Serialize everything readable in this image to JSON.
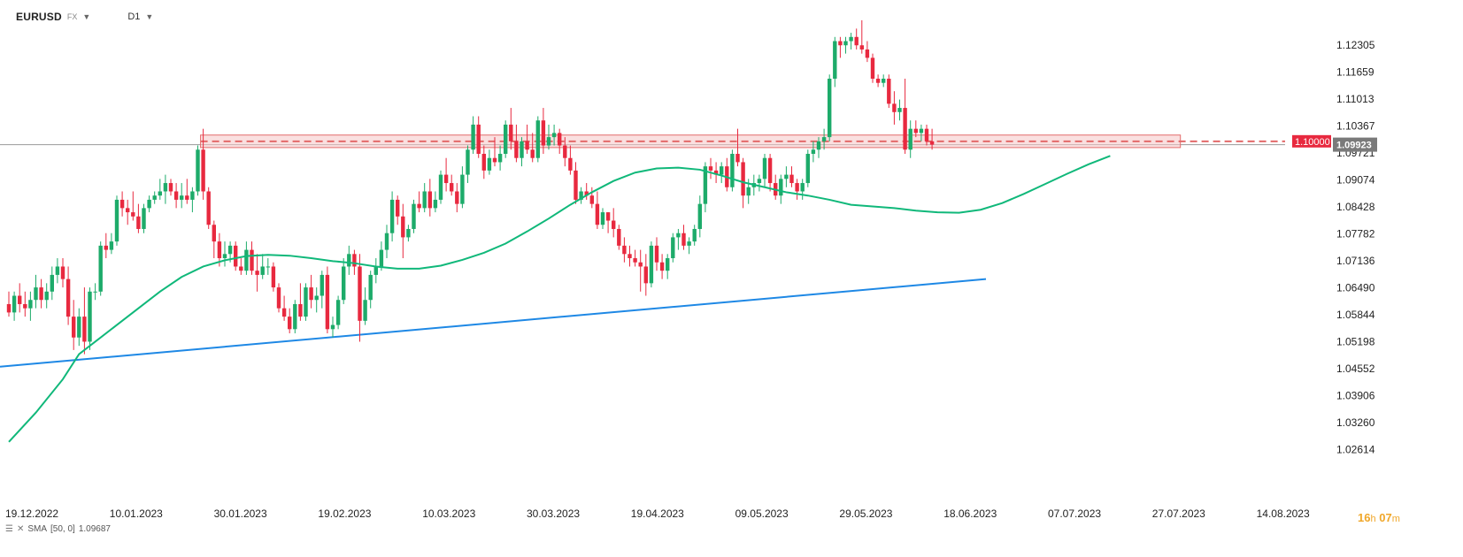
{
  "header": {
    "symbol": "EURUSD",
    "market": "FX",
    "timeframe": "D1"
  },
  "indicator": {
    "label": "SMA",
    "params": "[50, 0]",
    "value": "1.09687"
  },
  "countdown": {
    "hours": "16",
    "hours_unit": "h",
    "minutes": "07",
    "minutes_unit": "m"
  },
  "price_tags": {
    "level": "1.10000",
    "current": "1.09923"
  },
  "colors": {
    "up": "#1dab6a",
    "down": "#e8293f",
    "sma": "#10b87a",
    "trendline": "#1e88e5",
    "zone_fill": "#f6c7c7",
    "zone_stroke": "#e36a6a",
    "level_tag": "#e8293f",
    "current_tag": "#7a7a7a"
  },
  "chart_data": {
    "type": "candlestick",
    "symbol": "EURUSD",
    "ylim": [
      1.02,
      1.13
    ],
    "y_ticks": [
      "1.12305",
      "1.11659",
      "1.11013",
      "1.10367",
      "1.09721",
      "1.09074",
      "1.08428",
      "1.07782",
      "1.07136",
      "1.06490",
      "1.05844",
      "1.05198",
      "1.04552",
      "1.03906",
      "1.03260",
      "1.02614"
    ],
    "x_ticks": [
      "19.12.2022",
      "10.01.2023",
      "30.01.2023",
      "19.02.2023",
      "10.03.2023",
      "30.03.2023",
      "19.04.2023",
      "09.05.2023",
      "29.05.2023",
      "18.06.2023",
      "07.07.2023",
      "27.07.2023",
      "14.08.2023"
    ],
    "candles": [
      [
        1.061,
        1.064,
        1.058,
        1.059
      ],
      [
        1.059,
        1.064,
        1.057,
        1.063
      ],
      [
        1.063,
        1.066,
        1.059,
        1.061
      ],
      [
        1.061,
        1.064,
        1.058,
        1.06
      ],
      [
        1.06,
        1.064,
        1.057,
        1.062
      ],
      [
        1.062,
        1.068,
        1.06,
        1.065
      ],
      [
        1.065,
        1.067,
        1.06,
        1.062
      ],
      [
        1.062,
        1.066,
        1.06,
        1.064
      ],
      [
        1.064,
        1.07,
        1.062,
        1.068
      ],
      [
        1.068,
        1.072,
        1.066,
        1.07
      ],
      [
        1.07,
        1.072,
        1.065,
        1.067
      ],
      [
        1.067,
        1.07,
        1.056,
        1.058
      ],
      [
        1.058,
        1.062,
        1.05,
        1.053
      ],
      [
        1.053,
        1.06,
        1.051,
        1.058
      ],
      [
        1.058,
        1.065,
        1.049,
        1.052
      ],
      [
        1.052,
        1.065,
        1.05,
        1.064
      ],
      [
        1.064,
        1.066,
        1.062,
        1.064
      ],
      [
        1.064,
        1.076,
        1.063,
        1.075
      ],
      [
        1.075,
        1.078,
        1.072,
        1.074
      ],
      [
        1.074,
        1.078,
        1.073,
        1.076
      ],
      [
        1.076,
        1.087,
        1.075,
        1.086
      ],
      [
        1.086,
        1.088,
        1.082,
        1.084
      ],
      [
        1.084,
        1.086,
        1.08,
        1.083
      ],
      [
        1.083,
        1.088,
        1.081,
        1.082
      ],
      [
        1.082,
        1.085,
        1.078,
        1.079
      ],
      [
        1.079,
        1.085,
        1.078,
        1.084
      ],
      [
        1.084,
        1.087,
        1.083,
        1.086
      ],
      [
        1.086,
        1.088,
        1.085,
        1.087
      ],
      [
        1.087,
        1.091,
        1.086,
        1.088
      ],
      [
        1.088,
        1.092,
        1.085,
        1.09
      ],
      [
        1.09,
        1.091,
        1.087,
        1.088
      ],
      [
        1.088,
        1.09,
        1.084,
        1.086
      ],
      [
        1.086,
        1.09,
        1.084,
        1.087
      ],
      [
        1.087,
        1.091,
        1.085,
        1.086
      ],
      [
        1.086,
        1.089,
        1.083,
        1.088
      ],
      [
        1.088,
        1.099,
        1.087,
        1.098
      ],
      [
        1.098,
        1.103,
        1.086,
        1.088
      ],
      [
        1.088,
        1.089,
        1.079,
        1.08
      ],
      [
        1.08,
        1.081,
        1.072,
        1.076
      ],
      [
        1.076,
        1.078,
        1.07,
        1.072
      ],
      [
        1.072,
        1.076,
        1.07,
        1.073
      ],
      [
        1.073,
        1.076,
        1.071,
        1.075
      ],
      [
        1.075,
        1.076,
        1.069,
        1.07
      ],
      [
        1.07,
        1.072,
        1.068,
        1.069
      ],
      [
        1.069,
        1.076,
        1.068,
        1.074
      ],
      [
        1.074,
        1.076,
        1.068,
        1.069
      ],
      [
        1.069,
        1.073,
        1.064,
        1.068
      ],
      [
        1.068,
        1.073,
        1.067,
        1.07
      ],
      [
        1.07,
        1.072,
        1.068,
        1.07
      ],
      [
        1.07,
        1.071,
        1.064,
        1.065
      ],
      [
        1.065,
        1.066,
        1.059,
        1.06
      ],
      [
        1.06,
        1.063,
        1.057,
        1.058
      ],
      [
        1.058,
        1.06,
        1.054,
        1.055
      ],
      [
        1.055,
        1.062,
        1.054,
        1.061
      ],
      [
        1.061,
        1.066,
        1.057,
        1.058
      ],
      [
        1.058,
        1.066,
        1.057,
        1.065
      ],
      [
        1.065,
        1.068,
        1.06,
        1.062
      ],
      [
        1.062,
        1.065,
        1.059,
        1.063
      ],
      [
        1.063,
        1.069,
        1.06,
        1.068
      ],
      [
        1.068,
        1.07,
        1.054,
        1.055
      ],
      [
        1.055,
        1.058,
        1.053,
        1.056
      ],
      [
        1.056,
        1.063,
        1.055,
        1.062
      ],
      [
        1.062,
        1.072,
        1.061,
        1.07
      ],
      [
        1.07,
        1.075,
        1.068,
        1.073
      ],
      [
        1.073,
        1.074,
        1.068,
        1.07
      ],
      [
        1.07,
        1.073,
        1.052,
        1.057
      ],
      [
        1.057,
        1.065,
        1.056,
        1.062
      ],
      [
        1.062,
        1.069,
        1.06,
        1.068
      ],
      [
        1.068,
        1.072,
        1.066,
        1.07
      ],
      [
        1.07,
        1.076,
        1.069,
        1.074
      ],
      [
        1.074,
        1.08,
        1.072,
        1.078
      ],
      [
        1.078,
        1.088,
        1.076,
        1.086
      ],
      [
        1.086,
        1.087,
        1.08,
        1.082
      ],
      [
        1.082,
        1.085,
        1.072,
        1.077
      ],
      [
        1.077,
        1.08,
        1.076,
        1.079
      ],
      [
        1.079,
        1.086,
        1.078,
        1.085
      ],
      [
        1.085,
        1.088,
        1.083,
        1.084
      ],
      [
        1.084,
        1.09,
        1.083,
        1.088
      ],
      [
        1.088,
        1.091,
        1.082,
        1.084
      ],
      [
        1.084,
        1.088,
        1.083,
        1.086
      ],
      [
        1.086,
        1.093,
        1.085,
        1.092
      ],
      [
        1.092,
        1.096,
        1.088,
        1.09
      ],
      [
        1.09,
        1.092,
        1.087,
        1.088
      ],
      [
        1.088,
        1.09,
        1.083,
        1.085
      ],
      [
        1.085,
        1.094,
        1.084,
        1.092
      ],
      [
        1.092,
        1.099,
        1.09,
        1.098
      ],
      [
        1.098,
        1.106,
        1.097,
        1.104
      ],
      [
        1.104,
        1.106,
        1.096,
        1.097
      ],
      [
        1.097,
        1.099,
        1.091,
        1.093
      ],
      [
        1.093,
        1.098,
        1.092,
        1.096
      ],
      [
        1.096,
        1.101,
        1.094,
        1.095
      ],
      [
        1.095,
        1.099,
        1.093,
        1.097
      ],
      [
        1.097,
        1.105,
        1.096,
        1.104
      ],
      [
        1.104,
        1.108,
        1.098,
        1.1
      ],
      [
        1.1,
        1.104,
        1.095,
        1.096
      ],
      [
        1.096,
        1.101,
        1.094,
        1.1
      ],
      [
        1.1,
        1.104,
        1.097,
        1.098
      ],
      [
        1.098,
        1.102,
        1.095,
        1.096
      ],
      [
        1.096,
        1.106,
        1.095,
        1.105
      ],
      [
        1.105,
        1.108,
        1.097,
        1.099
      ],
      [
        1.099,
        1.104,
        1.098,
        1.101
      ],
      [
        1.101,
        1.104,
        1.099,
        1.102
      ],
      [
        1.102,
        1.103,
        1.097,
        1.099
      ],
      [
        1.099,
        1.101,
        1.094,
        1.096
      ],
      [
        1.096,
        1.099,
        1.092,
        1.093
      ],
      [
        1.093,
        1.095,
        1.085,
        1.086
      ],
      [
        1.086,
        1.089,
        1.085,
        1.088
      ],
      [
        1.088,
        1.09,
        1.086,
        1.087
      ],
      [
        1.087,
        1.089,
        1.084,
        1.085
      ],
      [
        1.085,
        1.088,
        1.079,
        1.08
      ],
      [
        1.08,
        1.084,
        1.079,
        1.083
      ],
      [
        1.083,
        1.083,
        1.078,
        1.081
      ],
      [
        1.081,
        1.084,
        1.077,
        1.079
      ],
      [
        1.079,
        1.08,
        1.074,
        1.075
      ],
      [
        1.075,
        1.077,
        1.071,
        1.073
      ],
      [
        1.073,
        1.075,
        1.07,
        1.072
      ],
      [
        1.072,
        1.074,
        1.07,
        1.071
      ],
      [
        1.071,
        1.074,
        1.064,
        1.07
      ],
      [
        1.07,
        1.073,
        1.063,
        1.066
      ],
      [
        1.066,
        1.076,
        1.065,
        1.075
      ],
      [
        1.075,
        1.077,
        1.069,
        1.071
      ],
      [
        1.071,
        1.073,
        1.067,
        1.069
      ],
      [
        1.069,
        1.073,
        1.067,
        1.072
      ],
      [
        1.072,
        1.078,
        1.071,
        1.077
      ],
      [
        1.077,
        1.079,
        1.074,
        1.078
      ],
      [
        1.078,
        1.08,
        1.074,
        1.075
      ],
      [
        1.075,
        1.077,
        1.073,
        1.076
      ],
      [
        1.076,
        1.08,
        1.075,
        1.079
      ],
      [
        1.079,
        1.087,
        1.077,
        1.085
      ],
      [
        1.085,
        1.095,
        1.083,
        1.094
      ],
      [
        1.094,
        1.096,
        1.091,
        1.093
      ],
      [
        1.093,
        1.095,
        1.09,
        1.092
      ],
      [
        1.092,
        1.095,
        1.09,
        1.094
      ],
      [
        1.094,
        1.096,
        1.088,
        1.089
      ],
      [
        1.089,
        1.098,
        1.088,
        1.097
      ],
      [
        1.097,
        1.103,
        1.094,
        1.095
      ],
      [
        1.095,
        1.096,
        1.084,
        1.087
      ],
      [
        1.087,
        1.091,
        1.085,
        1.089
      ],
      [
        1.089,
        1.092,
        1.087,
        1.09
      ],
      [
        1.09,
        1.092,
        1.088,
        1.091
      ],
      [
        1.091,
        1.097,
        1.089,
        1.096
      ],
      [
        1.096,
        1.097,
        1.088,
        1.09
      ],
      [
        1.09,
        1.092,
        1.086,
        1.087
      ],
      [
        1.087,
        1.092,
        1.085,
        1.091
      ],
      [
        1.091,
        1.094,
        1.089,
        1.092
      ],
      [
        1.092,
        1.094,
        1.089,
        1.09
      ],
      [
        1.09,
        1.091,
        1.086,
        1.088
      ],
      [
        1.088,
        1.091,
        1.086,
        1.09
      ],
      [
        1.09,
        1.098,
        1.089,
        1.097
      ],
      [
        1.097,
        1.1,
        1.095,
        1.098
      ],
      [
        1.098,
        1.101,
        1.096,
        1.1
      ],
      [
        1.1,
        1.103,
        1.098,
        1.101
      ],
      [
        1.101,
        1.116,
        1.1,
        1.115
      ],
      [
        1.115,
        1.125,
        1.113,
        1.124
      ],
      [
        1.124,
        1.125,
        1.12,
        1.123
      ],
      [
        1.123,
        1.125,
        1.121,
        1.124
      ],
      [
        1.124,
        1.126,
        1.122,
        1.125
      ],
      [
        1.125,
        1.127,
        1.122,
        1.123
      ],
      [
        1.123,
        1.129,
        1.121,
        1.122
      ],
      [
        1.122,
        1.124,
        1.119,
        1.12
      ],
      [
        1.12,
        1.121,
        1.114,
        1.115
      ],
      [
        1.115,
        1.116,
        1.113,
        1.114
      ],
      [
        1.114,
        1.116,
        1.113,
        1.115
      ],
      [
        1.115,
        1.116,
        1.108,
        1.109
      ],
      [
        1.109,
        1.112,
        1.104,
        1.107
      ],
      [
        1.107,
        1.11,
        1.105,
        1.108
      ],
      [
        1.108,
        1.115,
        1.097,
        1.098
      ],
      [
        1.098,
        1.105,
        1.096,
        1.103
      ],
      [
        1.103,
        1.105,
        1.101,
        1.102
      ],
      [
        1.102,
        1.104,
        1.1,
        1.103
      ],
      [
        1.103,
        1.104,
        1.099,
        1.1
      ],
      [
        1.1,
        1.103,
        1.098,
        1.0992
      ]
    ],
    "sma": {
      "name": "SMA",
      "points": [
        [
          0,
          1.028
        ],
        [
          5,
          1.035
        ],
        [
          10,
          1.043
        ],
        [
          13,
          1.049
        ],
        [
          16,
          1.052
        ],
        [
          20,
          1.056
        ],
        [
          24,
          1.06
        ],
        [
          28,
          1.064
        ],
        [
          32,
          1.0675
        ],
        [
          36,
          1.07
        ],
        [
          40,
          1.0715
        ],
        [
          44,
          1.0725
        ],
        [
          48,
          1.0728
        ],
        [
          52,
          1.0726
        ],
        [
          56,
          1.072
        ],
        [
          60,
          1.0713
        ],
        [
          64,
          1.0708
        ],
        [
          68,
          1.07
        ],
        [
          72,
          1.0695
        ],
        [
          76,
          1.0695
        ],
        [
          80,
          1.0702
        ],
        [
          84,
          1.0716
        ],
        [
          88,
          1.0733
        ],
        [
          92,
          1.0755
        ],
        [
          96,
          1.0784
        ],
        [
          100,
          1.0815
        ],
        [
          104,
          1.0848
        ],
        [
          108,
          1.0878
        ],
        [
          112,
          1.0905
        ],
        [
          116,
          1.0925
        ],
        [
          120,
          1.0935
        ],
        [
          124,
          1.0937
        ],
        [
          128,
          1.0932
        ],
        [
          132,
          1.0918
        ],
        [
          136,
          1.0902
        ],
        [
          140,
          1.089
        ],
        [
          144,
          1.0878
        ],
        [
          148,
          1.087
        ],
        [
          152,
          1.086
        ],
        [
          156,
          1.0848
        ],
        [
          160,
          1.0844
        ],
        [
          164,
          1.084
        ],
        [
          168,
          1.0834
        ],
        [
          172,
          1.083
        ],
        [
          176,
          1.0829
        ],
        [
          180,
          1.0836
        ],
        [
          184,
          1.0852
        ],
        [
          188,
          1.0874
        ],
        [
          192,
          1.0898
        ],
        [
          196,
          1.0922
        ],
        [
          200,
          1.0945
        ],
        [
          204,
          1.0965
        ]
      ]
    },
    "trendline": {
      "start": [
        0,
        1.046
      ],
      "end": [
        180,
        1.067
      ]
    },
    "zone": {
      "start_index": 36,
      "end_index": 217,
      "low": 1.0985,
      "high": 1.1015,
      "level": 1.1
    },
    "last_price": 1.0992
  }
}
